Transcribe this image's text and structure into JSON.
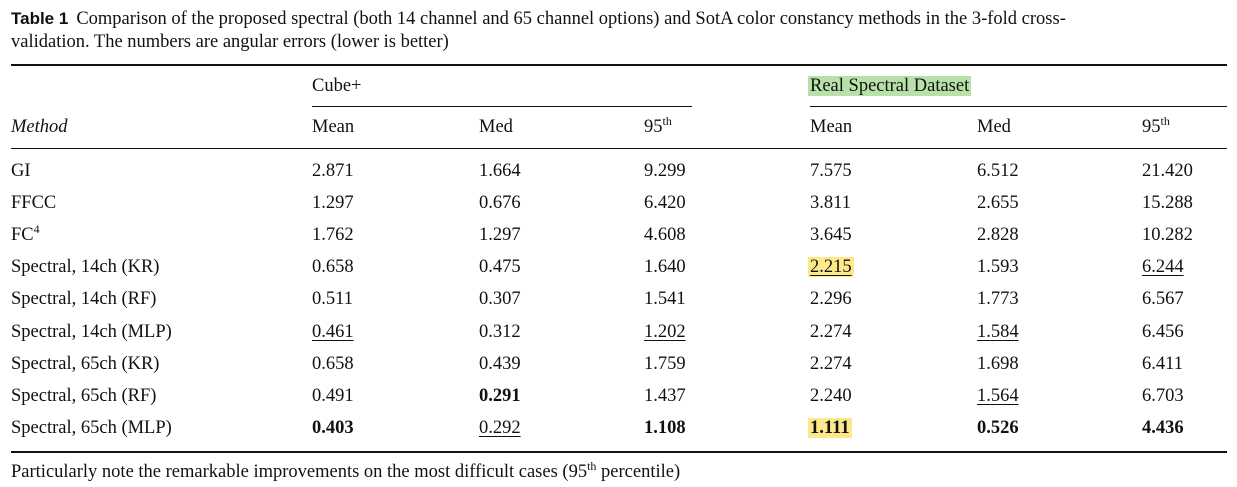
{
  "caption": {
    "label": "Table 1",
    "line1": "Comparison of the proposed spectral (both 14 channel and 65 channel options) and SotA color constancy methods in the 3-fold cross-",
    "line2": "validation. The numbers are angular errors (lower is better)"
  },
  "groups": {
    "cube": "Cube+",
    "real": "Real Spectral Dataset"
  },
  "headers": {
    "method": "Method",
    "mean": "Mean",
    "med": "Med",
    "p95_base": "95",
    "p95_sup": "th"
  },
  "rows": [
    {
      "method": "GI",
      "method_sup": "",
      "cells": [
        "2.871",
        "1.664",
        "9.299",
        "7.575",
        "6.512",
        "21.420"
      ]
    },
    {
      "method": "FFCC",
      "method_sup": "",
      "cells": [
        "1.297",
        "0.676",
        "6.420",
        "3.811",
        "2.655",
        "15.288"
      ]
    },
    {
      "method": "FC",
      "method_sup": "4",
      "cells": [
        "1.762",
        "1.297",
        "4.608",
        "3.645",
        "2.828",
        "10.282"
      ]
    },
    {
      "method": "Spectral, 14ch (KR)",
      "method_sup": "",
      "cells": [
        "0.658",
        "0.475",
        "1.640",
        "2.215",
        "1.593",
        "6.244"
      ]
    },
    {
      "method": "Spectral, 14ch (RF)",
      "method_sup": "",
      "cells": [
        "0.511",
        "0.307",
        "1.541",
        "2.296",
        "1.773",
        "6.567"
      ]
    },
    {
      "method": "Spectral, 14ch (MLP)",
      "method_sup": "",
      "cells": [
        "0.461",
        "0.312",
        "1.202",
        "2.274",
        "1.584",
        "6.456"
      ]
    },
    {
      "method": "Spectral, 65ch (KR)",
      "method_sup": "",
      "cells": [
        "0.658",
        "0.439",
        "1.759",
        "2.274",
        "1.698",
        "6.411"
      ]
    },
    {
      "method": "Spectral, 65ch (RF)",
      "method_sup": "",
      "cells": [
        "0.491",
        "0.291",
        "1.437",
        "2.240",
        "1.564",
        "6.703"
      ]
    },
    {
      "method": "Spectral, 65ch (MLP)",
      "method_sup": "",
      "cells": [
        "0.403",
        "0.292",
        "1.108",
        "1.111",
        "0.526",
        "4.436"
      ]
    }
  ],
  "footnote": {
    "before": "Particularly note the remarkable improvements on the most difficult cases (95",
    "sup": "th",
    "after": " percentile)"
  }
}
